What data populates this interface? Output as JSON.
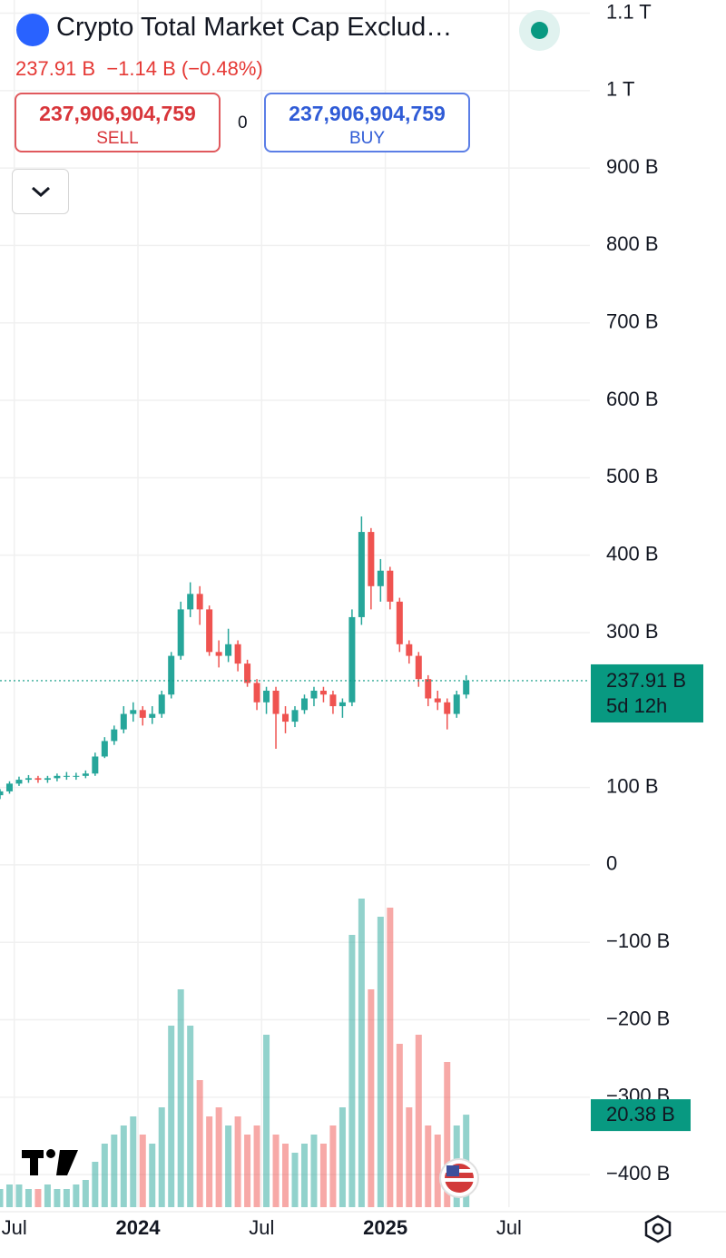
{
  "header": {
    "title": "Crypto Total Market Cap Exclud…",
    "price": "237.91 B",
    "change": "−1.14 B (−0.48%)",
    "sell_price": "237,906,904,759",
    "sell_label": "SELL",
    "spread": "0",
    "buy_price": "237,906,904,759",
    "buy_label": "BUY"
  },
  "chart_data": {
    "type": "candlestick",
    "x": [
      0,
      2,
      4,
      6,
      8,
      10,
      12,
      14,
      16,
      18,
      20,
      22,
      24,
      26,
      28,
      30,
      32,
      34,
      36,
      38,
      40,
      42,
      44,
      46,
      48,
      50,
      52,
      54,
      56,
      58,
      60,
      62,
      64,
      66,
      68,
      70,
      72,
      74,
      76,
      78,
      80,
      82,
      84,
      86,
      88,
      90,
      92,
      94,
      96,
      98
    ],
    "open": [
      90,
      95,
      105,
      110,
      112,
      110,
      112,
      115,
      115,
      115,
      118,
      140,
      160,
      175,
      195,
      200,
      190,
      195,
      220,
      270,
      330,
      350,
      330,
      275,
      270,
      285,
      260,
      235,
      210,
      225,
      195,
      185,
      200,
      215,
      225,
      220,
      205,
      210,
      320,
      430,
      360,
      380,
      340,
      285,
      270,
      240,
      215,
      210,
      195,
      220
    ],
    "high": [
      98,
      108,
      114,
      116,
      115,
      115,
      118,
      120,
      119,
      122,
      145,
      165,
      180,
      205,
      210,
      205,
      205,
      225,
      275,
      340,
      365,
      360,
      335,
      290,
      305,
      290,
      265,
      240,
      230,
      230,
      205,
      205,
      220,
      230,
      230,
      225,
      215,
      330,
      450,
      435,
      395,
      385,
      345,
      290,
      275,
      245,
      225,
      215,
      225,
      245
    ],
    "low": [
      85,
      92,
      102,
      106,
      106,
      106,
      108,
      110,
      110,
      112,
      115,
      138,
      155,
      170,
      185,
      180,
      182,
      190,
      215,
      265,
      320,
      310,
      270,
      255,
      262,
      250,
      230,
      200,
      195,
      150,
      170,
      178,
      195,
      205,
      210,
      195,
      190,
      205,
      310,
      330,
      340,
      330,
      275,
      260,
      230,
      205,
      200,
      175,
      190,
      215
    ],
    "close": [
      95,
      105,
      110,
      112,
      110,
      112,
      115,
      115,
      115,
      118,
      140,
      160,
      175,
      195,
      200,
      190,
      195,
      220,
      270,
      330,
      350,
      330,
      275,
      270,
      285,
      260,
      235,
      210,
      225,
      195,
      185,
      200,
      215,
      225,
      220,
      205,
      210,
      320,
      430,
      360,
      380,
      340,
      285,
      270,
      240,
      215,
      210,
      195,
      220,
      237.91
    ],
    "volume": [
      4,
      5,
      5,
      4,
      4,
      5,
      4,
      4,
      5,
      6,
      10,
      14,
      16,
      18,
      20,
      16,
      14,
      22,
      40,
      48,
      40,
      28,
      20,
      22,
      18,
      20,
      16,
      18,
      38,
      16,
      14,
      12,
      14,
      16,
      14,
      18,
      22,
      60,
      68,
      48,
      64,
      66,
      36,
      22,
      38,
      18,
      16,
      32,
      18,
      20.38
    ],
    "last_price_label": "237.91 B",
    "countdown": "5d 12h",
    "last_volume_label": "20.38 B",
    "up_color": "#26a69a",
    "down_color": "#ef5350",
    "grid": true,
    "xlim": [
      0,
      124
    ],
    "xticks": [
      {
        "value": 3,
        "label": "Jul"
      },
      {
        "value": 29,
        "label": "2024"
      },
      {
        "value": 55,
        "label": "Jul"
      },
      {
        "value": 81,
        "label": "2025"
      },
      {
        "value": 107,
        "label": "Jul"
      }
    ],
    "ylim": [
      -442,
      1117
    ],
    "yticks": [
      {
        "value": 1100,
        "label": "1.1 T"
      },
      {
        "value": 1000,
        "label": "1 T"
      },
      {
        "value": 900,
        "label": "900 B"
      },
      {
        "value": 800,
        "label": "800 B"
      },
      {
        "value": 700,
        "label": "700 B"
      },
      {
        "value": 600,
        "label": "600 B"
      },
      {
        "value": 500,
        "label": "500 B"
      },
      {
        "value": 400,
        "label": "400 B"
      },
      {
        "value": 300,
        "label": "300 B"
      },
      {
        "value": 100,
        "label": "100 B"
      },
      0,
      {
        "value": -100,
        "label": "−100 B"
      },
      {
        "value": -200,
        "label": "−200 B"
      },
      {
        "value": -300,
        "label": "−300 B"
      },
      {
        "value": -400,
        "label": "−400 B"
      }
    ],
    "volume_lim": [
      0,
      68
    ]
  }
}
